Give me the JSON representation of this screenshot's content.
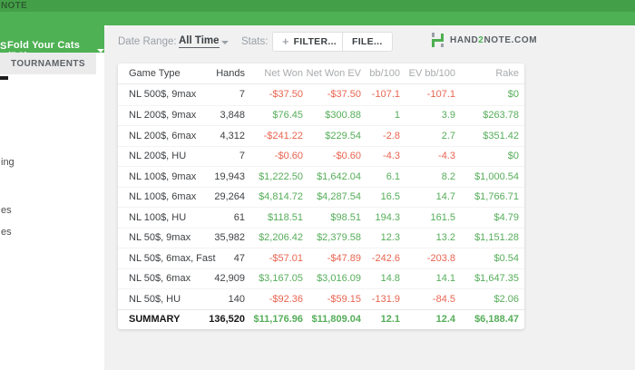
{
  "window": {
    "titlebar_fragment": "NOTE"
  },
  "header": {
    "player_selector_fragment": "S",
    "player_selector": "Fold Your Cats (PS)"
  },
  "sidebar": {
    "tournaments_tab": "TOURNAMENTS",
    "clipped_items": [
      "ing",
      "es",
      "es"
    ]
  },
  "toolbar": {
    "date_range_label": "Date Range:",
    "date_range_value": "All Time",
    "stats_label": "Stats:",
    "filter_plus": "+",
    "filter_button": "FILTER...",
    "file_button": "FILE...",
    "brand_word1": "HAND",
    "brand_accent": "2",
    "brand_word2": "NOTE.COM"
  },
  "report": {
    "columns": [
      "Game Type",
      "Hands",
      "Net Won",
      "Net Won EV",
      "bb/100",
      "EV bb/100",
      "Rake"
    ],
    "rows": [
      [
        "NL 500$, 9max",
        "7",
        "-$37.50",
        "-$37.50",
        "-107.1",
        "-107.1",
        "$0"
      ],
      [
        "NL 200$, 9max",
        "3,848",
        "$76.45",
        "$300.88",
        "1",
        "3.9",
        "$263.78"
      ],
      [
        "NL 200$, 6max",
        "4,312",
        "-$241.22",
        "$229.54",
        "-2.8",
        "2.7",
        "$351.42"
      ],
      [
        "NL 200$, HU",
        "7",
        "-$0.60",
        "-$0.60",
        "-4.3",
        "-4.3",
        "$0"
      ],
      [
        "NL 100$, 9max",
        "19,943",
        "$1,222.50",
        "$1,642.04",
        "6.1",
        "8.2",
        "$1,000.54"
      ],
      [
        "NL 100$, 6max",
        "29,264",
        "$4,814.72",
        "$4,287.54",
        "16.5",
        "14.7",
        "$1,766.71"
      ],
      [
        "NL 100$, HU",
        "61",
        "$118.51",
        "$98.51",
        "194.3",
        "161.5",
        "$4.79"
      ],
      [
        "NL 50$, 9max",
        "35,982",
        "$2,206.42",
        "$2,379.58",
        "12.3",
        "13.2",
        "$1,151.28"
      ],
      [
        "NL 50$, 6max, Fast",
        "47",
        "-$57.01",
        "-$47.89",
        "-242.6",
        "-203.8",
        "$0.54"
      ],
      [
        "NL 50$, 6max",
        "42,909",
        "$3,167.05",
        "$3,016.09",
        "14.8",
        "14.1",
        "$1,647.35"
      ],
      [
        "NL 50$, HU",
        "140",
        "-$92.36",
        "-$59.15",
        "-131.9",
        "-84.5",
        "$2.06"
      ]
    ],
    "summary": [
      "SUMMARY",
      "136,520",
      "$11,176.96",
      "$11,809.04",
      "12.1",
      "12.4",
      "$6,188.47"
    ]
  },
  "colors": {
    "positive": "#56ad5a",
    "negative": "#e96450",
    "brand_green": "#4caf50",
    "topbar_green": "#44a048",
    "bright_green": "#4eb153"
  }
}
